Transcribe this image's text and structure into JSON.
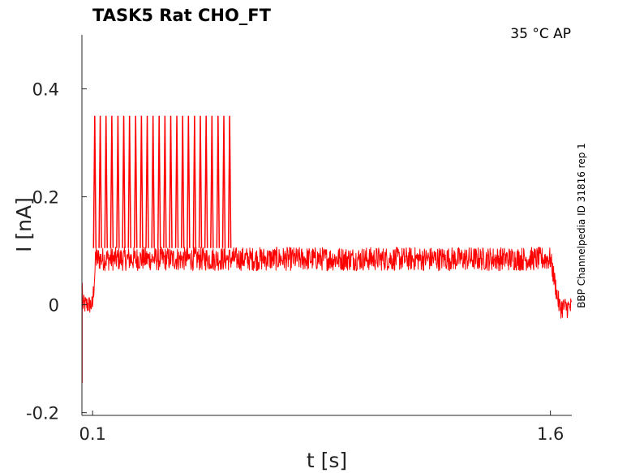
{
  "chart_data": {
    "type": "line",
    "title": "TASK5  Rat  CHO_FT",
    "annotation": "35 °C  AP",
    "side_label": "BBP Channelpedia ID 31816 rep 1",
    "xlabel": "t [s]",
    "ylabel": "I [nA]",
    "xlim": [
      0.065,
      1.67
    ],
    "ylim": [
      -0.205,
      0.5
    ],
    "x_ticks": [
      0.1,
      1.6
    ],
    "x_tick_labels": [
      "0.1",
      "1.6"
    ],
    "y_ticks": [
      -0.2,
      0,
      0.2,
      0.4
    ],
    "y_tick_labels": [
      "-0.2",
      "0",
      "0.2",
      "0.4"
    ],
    "grid": false,
    "series": [
      {
        "color": "#ff0000",
        "segments": {
          "pre": {
            "x": [
              0.065,
              0.1
            ],
            "level": 0.0,
            "noise": 0.018
          },
          "initial_transient": {
            "x": 0.066,
            "min": -0.145,
            "max": 0.04
          },
          "step": {
            "x": [
              0.1,
              1.6
            ],
            "rise_level": 0.1,
            "level": 0.085,
            "noise": 0.022
          },
          "post": {
            "x": [
              1.6,
              1.67
            ],
            "level": -0.005,
            "noise": 0.02
          }
        },
        "spike_peak": 0.35,
        "spikes_x": [
          0.107,
          0.125,
          0.144,
          0.163,
          0.183,
          0.202,
          0.221,
          0.241,
          0.26,
          0.279,
          0.298,
          0.318,
          0.337,
          0.356,
          0.376,
          0.395,
          0.414,
          0.434,
          0.453,
          0.472,
          0.491,
          0.511,
          0.53,
          0.549
        ]
      }
    ]
  }
}
